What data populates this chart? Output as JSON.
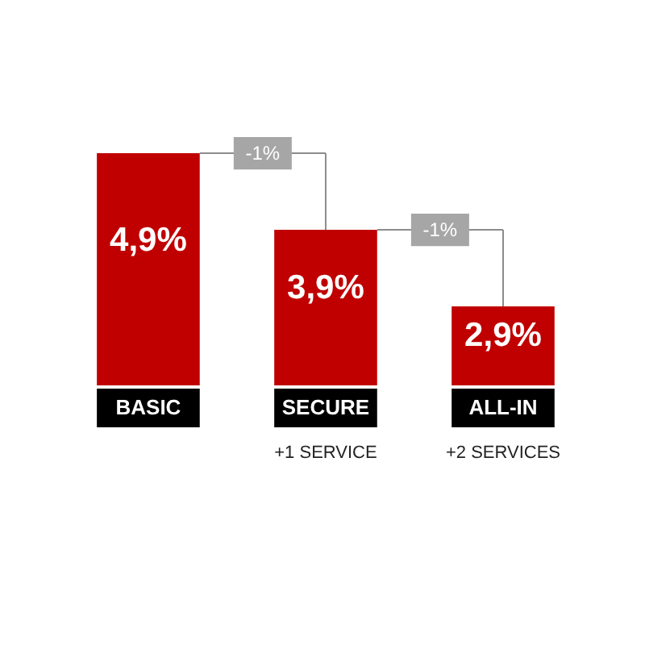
{
  "chart_data": {
    "type": "bar",
    "categories": [
      "BASIC",
      "SECURE",
      "ALL-IN"
    ],
    "values": [
      4.9,
      3.9,
      2.9
    ],
    "value_labels": [
      "4,9%",
      "3,9%",
      "2,9%"
    ],
    "color": "#c00000",
    "ylim": [
      1.87,
      6.9
    ],
    "tick_labels": "x",
    "annotations": [
      "-1%",
      "-1%",
      "+1 SERVICE",
      "+2 SERVICES"
    ]
  }
}
